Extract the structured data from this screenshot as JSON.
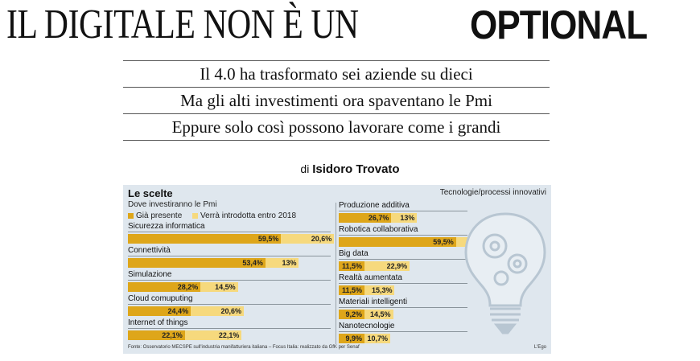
{
  "headline": {
    "light": "IL DIGITALE NON È UN",
    "bold": "OPTIONAL"
  },
  "subheads": [
    "Il 4.0 ha trasformato sei aziende su dieci",
    "Ma gli alti investimenti ora spaventano le Pmi",
    "Eppure solo così possono lavorare come i grandi"
  ],
  "byline": {
    "prefix": "di",
    "author": "Isidoro Trovato"
  },
  "infographic": {
    "title": "Le scelte",
    "subtitle": "Dove investiranno le Pmi",
    "right_heading": "Tecnologie/processi innovativi",
    "footer": "Fonte: Osservatorio MECSPE sull'industria manifatturiera italiana – Focus Italia: realizzato da GfK per Senaf",
    "credit": "L'Ego",
    "colors": {
      "present": "#dea61a",
      "planned": "#f6d97d",
      "background": "#dfe7ee"
    },
    "decoration_icon": "lightbulb-gears-icon"
  },
  "chart_data": {
    "type": "bar",
    "stacked": true,
    "unit": "%",
    "legend": [
      "Già presente",
      "Verrà introdotta entro 2018"
    ],
    "groups": [
      {
        "categories": [
          "Sicurezza informatica",
          "Connettività",
          "Simulazione",
          "Cloud comuputing",
          "Internet of things"
        ],
        "series": [
          {
            "name": "Già presente",
            "values": [
              59.5,
              53.4,
              28.2,
              24.4,
              22.1
            ],
            "labels": [
              "59,5%",
              "53,4%",
              "28,2%",
              "24,4%",
              "22,1%"
            ]
          },
          {
            "name": "Verrà introdotta entro 2018",
            "values": [
              20.6,
              13,
              14.5,
              20.6,
              22.1
            ],
            "labels": [
              "20,6%",
              "13%",
              "14,5%",
              "20,6%",
              "22,1%"
            ]
          }
        ]
      },
      {
        "categories": [
          "Produzione additiva",
          "Robotica collaborativa",
          "Big data",
          "Realtà aumentata",
          "Materiali intelligenti",
          "Nanotecnologie"
        ],
        "series": [
          {
            "name": "Già presente",
            "values": [
              26.7,
              59.5,
              11.5,
              11.5,
              9.2,
              9.9
            ],
            "labels": [
              "26,7%",
              "59,5%",
              "11,5%",
              "11,5%",
              "9,2%",
              "9,9%"
            ]
          },
          {
            "name": "Verrà introdotta entro 2018",
            "values": [
              13,
              20.6,
              22.9,
              15.3,
              14.5,
              10.7
            ],
            "labels": [
              "13%",
              "20,6%",
              "22,9%",
              "15,3%",
              "14,5%",
              "10,7%"
            ]
          }
        ]
      }
    ]
  }
}
